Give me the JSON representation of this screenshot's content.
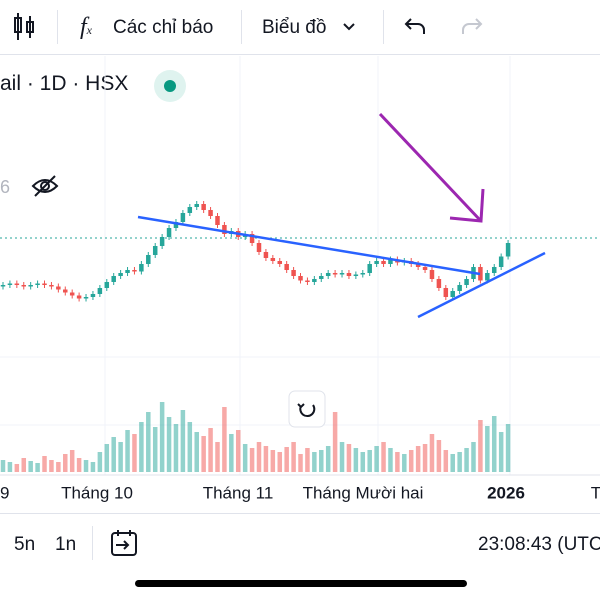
{
  "toolbar": {
    "indicators": "Các chỉ báo",
    "chart": "Biểu đồ"
  },
  "header": {
    "symbol": "ail · 1D · HSX"
  },
  "legend_fragment": "6",
  "bottom": {
    "ranges": [
      "5n",
      "1n"
    ],
    "clock": "23:08:43 (UTC"
  },
  "chart_data": {
    "type": "candlestick",
    "x_labels": [
      "9",
      "Tháng 10",
      "Tháng 11",
      "Tháng Mười hai",
      "2026",
      "T"
    ],
    "ylim": [
      0,
      100
    ],
    "close": [
      30,
      31,
      30,
      29,
      30,
      31,
      30,
      29,
      27,
      25,
      23,
      21,
      22,
      24,
      28,
      32,
      36,
      38,
      40,
      39,
      44,
      50,
      56,
      62,
      68,
      72,
      78,
      82,
      84,
      80,
      76,
      70,
      64,
      66,
      62,
      64,
      58,
      52,
      48,
      46,
      44,
      40,
      36,
      33,
      32,
      34,
      36,
      38,
      37,
      38,
      36,
      37,
      38,
      44,
      46,
      44,
      47,
      45,
      46,
      44,
      42,
      40,
      34,
      28,
      22,
      26,
      30,
      34,
      42,
      33,
      38,
      42,
      49,
      58
    ],
    "volume": [
      12,
      10,
      8,
      14,
      11,
      9,
      16,
      12,
      10,
      18,
      22,
      14,
      12,
      10,
      20,
      28,
      35,
      30,
      42,
      38,
      50,
      60,
      45,
      70,
      55,
      48,
      62,
      50,
      40,
      36,
      44,
      30,
      65,
      38,
      42,
      28,
      24,
      30,
      26,
      22,
      20,
      25,
      30,
      18,
      24,
      20,
      22,
      26,
      60,
      30,
      28,
      24,
      20,
      22,
      26,
      30,
      24,
      20,
      18,
      22,
      26,
      28,
      38,
      32,
      22,
      18,
      20,
      24,
      30,
      52,
      46,
      56,
      40,
      48
    ],
    "volume_ylim": [
      0,
      100
    ],
    "up_color": "#26a69a",
    "down_color": "#ef5350"
  }
}
